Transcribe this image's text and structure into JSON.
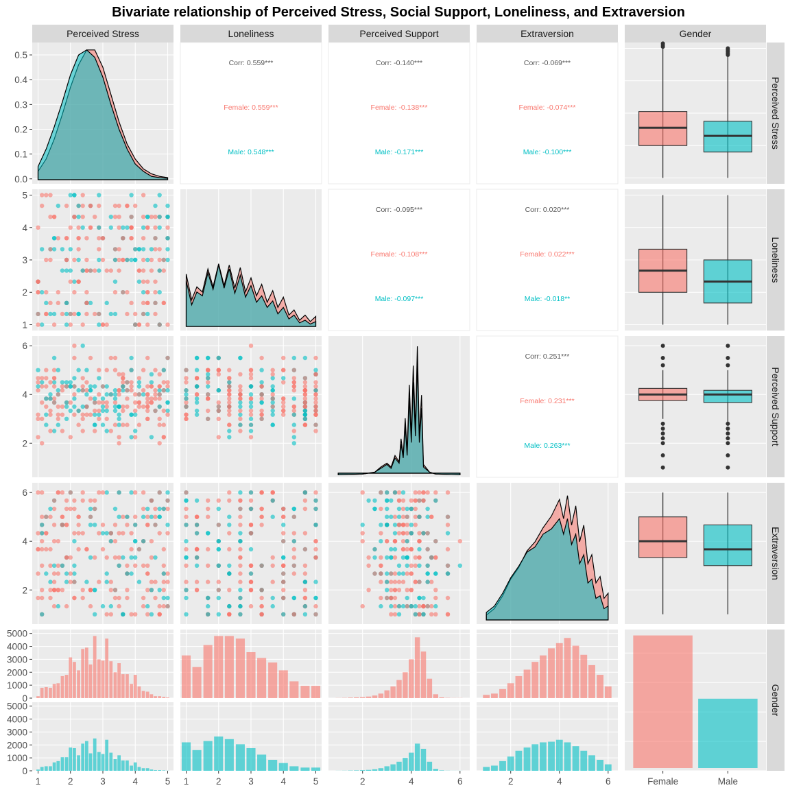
{
  "title": "Bivariate relationship of Perceived Stress, Social Support, Loneliness, and Extraversion",
  "colors": {
    "female": "#F8766D",
    "male": "#00BFC4",
    "panel": "#EBEBEB",
    "strip": "#D9D9D9",
    "grid": "#FFFFFF",
    "corr_text": "#555555",
    "title": "#000000",
    "axis_text": "#4D4D4D"
  },
  "chart_data": {
    "type": "scatter",
    "variables": [
      "Perceived Stress",
      "Loneliness",
      "Perceived Support",
      "Extraversion",
      "Gender"
    ],
    "axis_ticks": {
      "Perceived Stress": [
        1,
        2,
        3,
        4,
        5
      ],
      "Loneliness": [
        1,
        2,
        3,
        4,
        5
      ],
      "Perceived Support": [
        2,
        4,
        6
      ],
      "Extraversion": [
        2,
        4,
        6
      ],
      "Gender": [
        "Female",
        "Male"
      ],
      "density_y": [
        0.0,
        0.1,
        0.2,
        0.3,
        0.4,
        0.5
      ],
      "count_y": [
        0,
        1000,
        2000,
        3000,
        4000,
        5000
      ]
    },
    "correlations": [
      {
        "row": "Perceived Stress",
        "col": "Loneliness",
        "overall": "Corr: 0.559***",
        "female": "Female: 0.559***",
        "male": "Male: 0.548***"
      },
      {
        "row": "Perceived Stress",
        "col": "Perceived Support",
        "overall": "Corr: -0.140***",
        "female": "Female: -0.138***",
        "male": "Male: -0.171***"
      },
      {
        "row": "Perceived Stress",
        "col": "Extraversion",
        "overall": "Corr: -0.069***",
        "female": "Female: -0.074***",
        "male": "Male: -0.100***"
      },
      {
        "row": "Loneliness",
        "col": "Perceived Support",
        "overall": "Corr: -0.095***",
        "female": "Female: -0.108***",
        "male": "Male: -0.097***"
      },
      {
        "row": "Loneliness",
        "col": "Extraversion",
        "overall": "Corr: 0.020***",
        "female": "Female: 0.022***",
        "male": "Male: -0.018**"
      },
      {
        "row": "Perceived Support",
        "col": "Extraversion",
        "overall": "Corr: 0.251***",
        "female": "Female: 0.231***",
        "male": "Male: 0.263***"
      }
    ],
    "boxplots": [
      {
        "variable": "Perceived Stress",
        "female": {
          "min": 1.0,
          "q1": 2.0,
          "median": 2.55,
          "q3": 3.05,
          "max": 5.0
        },
        "male": {
          "min": 1.0,
          "q1": 1.8,
          "median": 2.3,
          "q3": 2.75,
          "max": 4.75
        }
      },
      {
        "variable": "Loneliness",
        "female": {
          "min": 1.0,
          "q1": 2.0,
          "median": 2.67,
          "q3": 3.33,
          "max": 5.0
        },
        "male": {
          "min": 1.0,
          "q1": 1.67,
          "median": 2.33,
          "q3": 3.0,
          "max": 5.0
        }
      },
      {
        "variable": "Perceived Support",
        "female": {
          "min": 3.0,
          "q1": 3.75,
          "median": 4.0,
          "q3": 4.25,
          "max": 5.0
        },
        "male": {
          "min": 2.75,
          "q1": 3.67,
          "median": 4.0,
          "q3": 4.17,
          "max": 5.0
        }
      },
      {
        "variable": "Extraversion",
        "female": {
          "min": 1.0,
          "q1": 3.33,
          "median": 4.0,
          "q3": 5.0,
          "max": 6.0
        },
        "male": {
          "min": 1.0,
          "q1": 3.0,
          "median": 3.67,
          "q3": 4.67,
          "max": 6.0
        }
      }
    ],
    "gender_counts": {
      "Female": 4600,
      "Male": 2450
    },
    "histograms": {
      "Perceived Stress": {
        "bins": [
          1.0,
          1.12,
          1.25,
          1.38,
          1.5,
          1.62,
          1.75,
          1.88,
          2.0,
          2.12,
          2.25,
          2.38,
          2.5,
          2.62,
          2.75,
          2.88,
          3.0,
          3.12,
          3.25,
          3.38,
          3.5,
          3.62,
          3.75,
          3.88,
          4.0,
          4.12,
          4.25,
          4.38,
          4.5,
          4.62,
          4.75,
          4.88,
          5.0
        ],
        "female": [
          150,
          800,
          850,
          800,
          1100,
          1150,
          1700,
          1800,
          3150,
          2800,
          2150,
          3800,
          3900,
          2600,
          4800,
          3000,
          2900,
          4600,
          2850,
          2000,
          2700,
          1850,
          1850,
          1100,
          1800,
          900,
          550,
          500,
          300,
          150,
          150,
          100,
          50
        ],
        "male": [
          100,
          300,
          350,
          350,
          650,
          750,
          1050,
          1050,
          1800,
          1750,
          1200,
          2100,
          2300,
          1350,
          2500,
          1450,
          1300,
          2400,
          1400,
          900,
          1200,
          800,
          800,
          400,
          650,
          300,
          200,
          200,
          100,
          50,
          50,
          30,
          10
        ]
      },
      "Loneliness": {
        "bins": [
          1.0,
          1.33,
          1.67,
          2.0,
          2.33,
          2.67,
          3.0,
          3.33,
          3.67,
          4.0,
          4.33,
          4.67,
          5.0
        ],
        "female": [
          3300,
          2400,
          4100,
          4800,
          4800,
          4600,
          3550,
          3100,
          2750,
          2150,
          1300,
          950,
          950
        ],
        "male": [
          2200,
          1600,
          2300,
          2650,
          2450,
          2050,
          1750,
          1250,
          850,
          600,
          350,
          250,
          250
        ]
      },
      "Perceived Support": {
        "bins": [
          1.0,
          1.25,
          1.5,
          1.75,
          2.0,
          2.25,
          2.5,
          2.75,
          3.0,
          3.25,
          3.5,
          3.75,
          4.0,
          4.25,
          4.5,
          4.75,
          5.0,
          5.25,
          5.5,
          5.75,
          6.0
        ],
        "female": [
          10,
          20,
          40,
          60,
          80,
          120,
          200,
          350,
          600,
          900,
          1400,
          2000,
          3000,
          4700,
          3600,
          1500,
          300,
          60,
          20,
          10,
          10
        ],
        "male": [
          5,
          10,
          20,
          30,
          50,
          70,
          120,
          200,
          350,
          500,
          700,
          1000,
          1400,
          2100,
          1700,
          700,
          150,
          30,
          10,
          5,
          5
        ]
      },
      "Extraversion": {
        "bins": [
          1.0,
          1.33,
          1.67,
          2.0,
          2.33,
          2.67,
          3.0,
          3.33,
          3.67,
          4.0,
          4.33,
          4.67,
          5.0,
          5.33,
          5.67,
          6.0
        ],
        "female": [
          250,
          350,
          700,
          1150,
          1700,
          2200,
          2800,
          3300,
          3850,
          4250,
          4650,
          4050,
          3350,
          2550,
          1800,
          900
        ],
        "male": [
          300,
          400,
          750,
          1100,
          1550,
          1800,
          2050,
          2200,
          2250,
          2400,
          2200,
          1900,
          1550,
          1200,
          850,
          500
        ]
      }
    },
    "densities": {
      "Perceived Stress": {
        "x": [
          1.0,
          1.25,
          1.5,
          1.75,
          2.0,
          2.25,
          2.5,
          2.75,
          3.0,
          3.25,
          3.5,
          3.75,
          4.0,
          4.25,
          4.5,
          4.75,
          5.0
        ],
        "female": [
          0.03,
          0.08,
          0.16,
          0.26,
          0.37,
          0.46,
          0.52,
          0.52,
          0.45,
          0.34,
          0.23,
          0.14,
          0.08,
          0.04,
          0.02,
          0.01,
          0.005
        ],
        "male": [
          0.05,
          0.12,
          0.21,
          0.31,
          0.42,
          0.5,
          0.52,
          0.49,
          0.41,
          0.3,
          0.2,
          0.12,
          0.06,
          0.03,
          0.01,
          0.005,
          0.002
        ]
      },
      "Loneliness": {
        "x": [
          1.0,
          1.17,
          1.33,
          1.5,
          1.67,
          1.83,
          2.0,
          2.17,
          2.33,
          2.5,
          2.67,
          2.83,
          3.0,
          3.17,
          3.33,
          3.5,
          3.67,
          3.83,
          4.0,
          4.17,
          4.33,
          4.5,
          4.67,
          4.83,
          5.0
        ],
        "female": [
          0.42,
          0.22,
          0.32,
          0.28,
          0.46,
          0.32,
          0.5,
          0.33,
          0.49,
          0.31,
          0.47,
          0.28,
          0.39,
          0.25,
          0.34,
          0.2,
          0.29,
          0.16,
          0.24,
          0.1,
          0.14,
          0.06,
          0.1,
          0.05,
          0.09
        ],
        "male": [
          0.37,
          0.18,
          0.28,
          0.25,
          0.43,
          0.3,
          0.49,
          0.31,
          0.46,
          0.27,
          0.41,
          0.24,
          0.33,
          0.2,
          0.25,
          0.16,
          0.21,
          0.11,
          0.16,
          0.07,
          0.1,
          0.04,
          0.06,
          0.03,
          0.05
        ]
      },
      "Perceived Support": {
        "x": [
          1.0,
          2.0,
          2.5,
          2.75,
          3.0,
          3.17,
          3.33,
          3.5,
          3.58,
          3.67,
          3.75,
          3.83,
          3.92,
          4.0,
          4.08,
          4.17,
          4.25,
          4.33,
          4.42,
          4.5,
          4.75,
          5.0,
          6.0
        ],
        "female": [
          0.0,
          0.005,
          0.02,
          0.06,
          0.09,
          0.06,
          0.15,
          0.1,
          0.28,
          0.15,
          0.44,
          0.18,
          0.7,
          0.3,
          0.85,
          0.35,
          1.0,
          0.3,
          0.62,
          0.08,
          0.02,
          0.005,
          0.0
        ],
        "male": [
          0.0,
          0.005,
          0.02,
          0.05,
          0.08,
          0.05,
          0.13,
          0.09,
          0.24,
          0.13,
          0.38,
          0.15,
          0.6,
          0.25,
          0.72,
          0.3,
          0.85,
          0.25,
          0.52,
          0.06,
          0.02,
          0.005,
          0.0
        ]
      },
      "Extraversion": {
        "x": [
          1.0,
          1.33,
          1.67,
          2.0,
          2.33,
          2.67,
          3.0,
          3.33,
          3.67,
          4.0,
          4.17,
          4.33,
          4.5,
          4.67,
          4.83,
          5.0,
          5.17,
          5.33,
          5.5,
          5.67,
          5.83,
          6.0
        ],
        "female": [
          0.05,
          0.1,
          0.2,
          0.33,
          0.42,
          0.55,
          0.62,
          0.73,
          0.82,
          0.95,
          0.8,
          0.98,
          0.75,
          0.9,
          0.62,
          0.75,
          0.45,
          0.52,
          0.3,
          0.35,
          0.18,
          0.22
        ],
        "male": [
          0.07,
          0.12,
          0.22,
          0.34,
          0.43,
          0.54,
          0.58,
          0.68,
          0.72,
          0.8,
          0.68,
          0.8,
          0.6,
          0.68,
          0.45,
          0.52,
          0.3,
          0.33,
          0.18,
          0.2,
          0.1,
          0.12
        ]
      }
    },
    "grid": true,
    "legend": "none"
  }
}
